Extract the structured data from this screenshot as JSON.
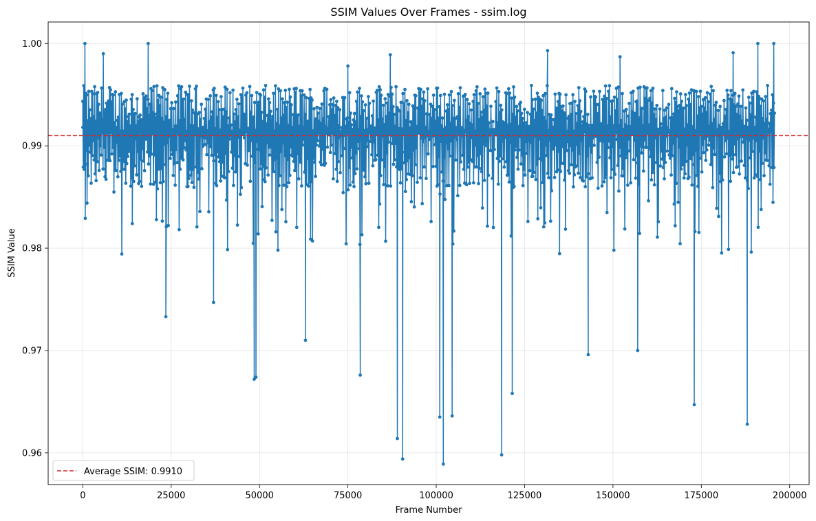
{
  "chart_data": {
    "type": "line",
    "title": "SSIM Values Over Frames - ssim.log",
    "xlabel": "Frame Number",
    "ylabel": "SSIM Value",
    "xlim": [
      -9800,
      205500
    ],
    "ylim": [
      0.9569,
      1.0021
    ],
    "xticks": [
      0,
      25000,
      50000,
      75000,
      100000,
      125000,
      150000,
      175000,
      200000
    ],
    "yticks": [
      0.96,
      0.97,
      0.98,
      0.99,
      1.0
    ],
    "ytick_labels": [
      "0.96",
      "0.97",
      "0.98",
      "0.99",
      "1.00"
    ],
    "grid": true,
    "legend_position": "lower-left",
    "colors": {
      "series": "#1f77b4",
      "average": "#d62728"
    },
    "series": [
      {
        "style": "line-with-markers",
        "x_range": [
          0,
          195700
        ],
        "baseline": 0.9914,
        "notable_points": [
          {
            "x": 0,
            "y": 0.9918
          },
          {
            "x": 600,
            "y": 1.0
          },
          {
            "x": 1200,
            "y": 0.9844
          },
          {
            "x": 5800,
            "y": 0.999
          },
          {
            "x": 14000,
            "y": 0.9824
          },
          {
            "x": 18500,
            "y": 1.0
          },
          {
            "x": 23500,
            "y": 0.9733
          },
          {
            "x": 37000,
            "y": 0.9747
          },
          {
            "x": 48500,
            "y": 0.9672
          },
          {
            "x": 49000,
            "y": 0.9674
          },
          {
            "x": 63000,
            "y": 0.971
          },
          {
            "x": 75000,
            "y": 0.9978
          },
          {
            "x": 78500,
            "y": 0.9676
          },
          {
            "x": 87000,
            "y": 0.9989
          },
          {
            "x": 89000,
            "y": 0.9614
          },
          {
            "x": 90500,
            "y": 0.9594
          },
          {
            "x": 101000,
            "y": 0.9635
          },
          {
            "x": 102000,
            "y": 0.9589
          },
          {
            "x": 104500,
            "y": 0.9636
          },
          {
            "x": 118500,
            "y": 0.9598
          },
          {
            "x": 121500,
            "y": 0.9658
          },
          {
            "x": 131500,
            "y": 0.9993
          },
          {
            "x": 143000,
            "y": 0.9696
          },
          {
            "x": 152000,
            "y": 0.9987
          },
          {
            "x": 157000,
            "y": 0.97
          },
          {
            "x": 173000,
            "y": 0.9647
          },
          {
            "x": 184000,
            "y": 0.9991
          },
          {
            "x": 188000,
            "y": 0.9628
          },
          {
            "x": 191000,
            "y": 1.0
          },
          {
            "x": 195500,
            "y": 1.0
          }
        ]
      }
    ],
    "average_line": {
      "y": 0.991,
      "label": "Average SSIM: 0.9910"
    }
  }
}
